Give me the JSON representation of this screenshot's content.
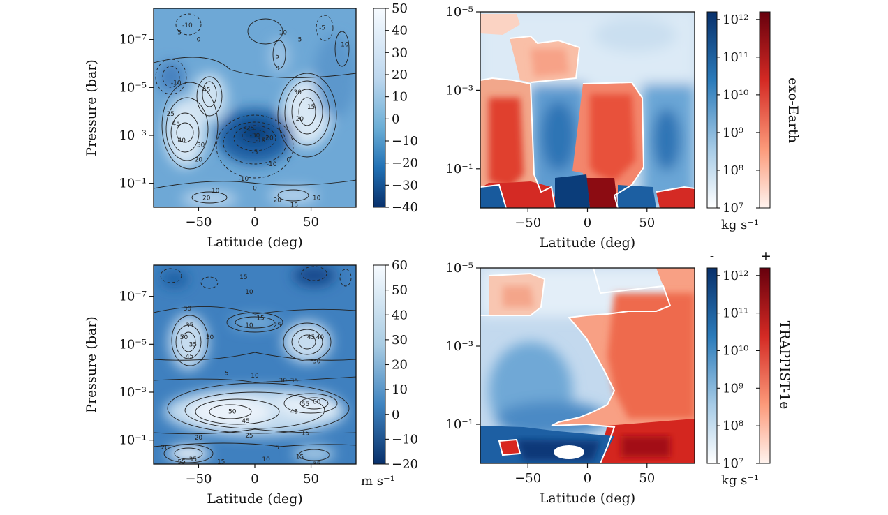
{
  "colors": {
    "blue_dark": "#08306b",
    "blue_mid": "#4a8ec6",
    "blue_light": "#deebf7",
    "red_dark": "#67000d",
    "red_mid": "#ef3b2c",
    "red_light": "#fee0d2"
  },
  "rows": [
    {
      "label": "exo-Earth",
      "sign_minus": "",
      "sign_plus": ""
    },
    {
      "label": "TRAPPIST-1e",
      "sign_minus": "-",
      "sign_plus": "+"
    }
  ],
  "chart_data": [
    {
      "type": "heatmap",
      "title": "",
      "xlabel": "Latitude (deg)",
      "ylabel": "Pressure (bar)",
      "x_ticks": [
        "−50",
        "0",
        "50"
      ],
      "x_tick_values": [
        -50,
        0,
        50
      ],
      "y_ticks": [
        "10⁻⁷",
        "10⁻⁵",
        "10⁻³",
        "10⁻¹"
      ],
      "y_tick_values": [
        1e-07,
        1e-05,
        0.001,
        0.1
      ],
      "xlim": [
        -90,
        90
      ],
      "ylim_bar_log": [
        1,
        1e-08
      ],
      "colorbar_ticks": [
        "50",
        "40",
        "30",
        "20",
        "10",
        "0",
        "−10",
        "−20",
        "−30",
        "−40"
      ],
      "colorbar_range": [
        -40,
        50
      ],
      "colorbar_unit": "",
      "contour_labels": [
        {
          "text": "-10",
          "lat": -60,
          "p_log": -7.6
        },
        {
          "text": "5",
          "lat": -67,
          "p_log": -7.3
        },
        {
          "text": "10",
          "lat": 25,
          "p_log": -7.3
        },
        {
          "text": "-5",
          "lat": 60,
          "p_log": -7.5
        },
        {
          "text": "5",
          "lat": 40,
          "p_log": -7.0
        },
        {
          "text": "10",
          "lat": 80,
          "p_log": -6.8
        },
        {
          "text": "0",
          "lat": -50,
          "p_log": -7.0
        },
        {
          "text": "5",
          "lat": 20,
          "p_log": -6.3
        },
        {
          "text": "0",
          "lat": 20,
          "p_log": -5.8
        },
        {
          "text": "-10",
          "lat": -70,
          "p_log": -5.2
        },
        {
          "text": "45",
          "lat": -43,
          "p_log": -4.9
        },
        {
          "text": "30",
          "lat": 38,
          "p_log": -4.8
        },
        {
          "text": "15",
          "lat": 50,
          "p_log": -4.2
        },
        {
          "text": "25",
          "lat": -75,
          "p_log": -3.9
        },
        {
          "text": "45",
          "lat": -70,
          "p_log": -3.5
        },
        {
          "text": "20",
          "lat": 40,
          "p_log": -3.7
        },
        {
          "text": "40",
          "lat": -65,
          "p_log": -2.8
        },
        {
          "text": "30",
          "lat": -48,
          "p_log": -2.6
        },
        {
          "text": "20",
          "lat": -50,
          "p_log": -2.0
        },
        {
          "text": "-25",
          "lat": -5,
          "p_log": -3.3
        },
        {
          "text": "-30",
          "lat": 0,
          "p_log": -3.0
        },
        {
          "text": "-15",
          "lat": 5,
          "p_log": -2.8
        },
        {
          "text": "-20",
          "lat": 12,
          "p_log": -2.9
        },
        {
          "text": "-5",
          "lat": 0,
          "p_log": -2.3
        },
        {
          "text": "-10",
          "lat": 15,
          "p_log": -1.8
        },
        {
          "text": "-10",
          "lat": -10,
          "p_log": -1.2
        },
        {
          "text": "0",
          "lat": 30,
          "p_log": -2.0
        },
        {
          "text": "0",
          "lat": 0,
          "p_log": -0.8
        },
        {
          "text": "20",
          "lat": -43,
          "p_log": -0.4
        },
        {
          "text": "10",
          "lat": -35,
          "p_log": -0.7
        },
        {
          "text": "20",
          "lat": 20,
          "p_log": -0.3
        },
        {
          "text": "15",
          "lat": 35,
          "p_log": -0.1
        },
        {
          "text": "10",
          "lat": 55,
          "p_log": -0.4
        },
        {
          "text": "5",
          "lat": -80,
          "p_log": 0.3
        },
        {
          "text": "5",
          "lat": 10,
          "p_log": 0.3
        }
      ]
    },
    {
      "type": "heatmap",
      "title": "",
      "xlabel": "Latitude (deg)",
      "ylabel": "",
      "x_ticks": [
        "−50",
        "0",
        "50"
      ],
      "x_tick_values": [
        -50,
        0,
        50
      ],
      "y_ticks": [
        "10⁻⁵",
        "10⁻³",
        "10⁻¹"
      ],
      "y_tick_values": [
        1e-05,
        0.001,
        0.1
      ],
      "xlim": [
        -90,
        90
      ],
      "colorbar_ticks": [
        "10¹²",
        "10¹¹",
        "10¹⁰",
        "10⁹",
        "10⁸",
        "10⁷"
      ],
      "colorbar_range_log": [
        7,
        12.2
      ],
      "colorbar_unit": "kg s⁻¹"
    },
    {
      "type": "heatmap",
      "title": "",
      "xlabel": "Latitude (deg)",
      "ylabel": "Pressure (bar)",
      "x_ticks": [
        "−50",
        "0",
        "50"
      ],
      "x_tick_values": [
        -50,
        0,
        50
      ],
      "y_ticks": [
        "10⁻⁷",
        "10⁻⁵",
        "10⁻³",
        "10⁻¹"
      ],
      "y_tick_values": [
        1e-07,
        1e-05,
        0.001,
        0.1
      ],
      "xlim": [
        -90,
        90
      ],
      "ylim_bar_log": [
        1,
        1e-08
      ],
      "colorbar_ticks": [
        "60",
        "50",
        "40",
        "30",
        "20",
        "10",
        "0",
        "−10",
        "−20"
      ],
      "colorbar_range": [
        -20,
        60
      ],
      "colorbar_unit": "m s⁻¹",
      "contour_labels": [
        {
          "text": "15",
          "lat": -10,
          "p_log": -7.8
        },
        {
          "text": "10",
          "lat": -5,
          "p_log": -7.2
        },
        {
          "text": "30",
          "lat": -60,
          "p_log": -6.5
        },
        {
          "text": "35",
          "lat": -58,
          "p_log": -5.8
        },
        {
          "text": "15",
          "lat": 5,
          "p_log": -6.1
        },
        {
          "text": "10",
          "lat": -5,
          "p_log": -5.8
        },
        {
          "text": "25",
          "lat": 20,
          "p_log": -5.8
        },
        {
          "text": "50",
          "lat": -63,
          "p_log": -5.3
        },
        {
          "text": "35",
          "lat": -55,
          "p_log": -5.0
        },
        {
          "text": "30",
          "lat": -40,
          "p_log": -5.3
        },
        {
          "text": "45",
          "lat": 50,
          "p_log": -5.3
        },
        {
          "text": "40",
          "lat": 58,
          "p_log": -5.3
        },
        {
          "text": "45",
          "lat": -58,
          "p_log": -4.5
        },
        {
          "text": "30",
          "lat": 55,
          "p_log": -4.3
        },
        {
          "text": "5",
          "lat": -25,
          "p_log": -3.8
        },
        {
          "text": "10",
          "lat": 0,
          "p_log": -3.7
        },
        {
          "text": "30",
          "lat": 25,
          "p_log": -3.5
        },
        {
          "text": "35",
          "lat": 35,
          "p_log": -3.5
        },
        {
          "text": "60",
          "lat": 55,
          "p_log": -2.6
        },
        {
          "text": "55",
          "lat": 45,
          "p_log": -2.5
        },
        {
          "text": "50",
          "lat": -20,
          "p_log": -2.2
        },
        {
          "text": "45",
          "lat": -8,
          "p_log": -1.8
        },
        {
          "text": "45",
          "lat": 35,
          "p_log": -2.2
        },
        {
          "text": "25",
          "lat": -5,
          "p_log": -1.2
        },
        {
          "text": "15",
          "lat": 45,
          "p_log": -1.3
        },
        {
          "text": "20",
          "lat": -50,
          "p_log": -1.1
        },
        {
          "text": "20",
          "lat": -80,
          "p_log": -0.7
        },
        {
          "text": "5",
          "lat": 20,
          "p_log": -0.7
        },
        {
          "text": "35",
          "lat": -55,
          "p_log": -0.2
        },
        {
          "text": "55",
          "lat": -65,
          "p_log": -0.1
        },
        {
          "text": "15",
          "lat": -30,
          "p_log": -0.1
        },
        {
          "text": "10",
          "lat": 10,
          "p_log": -0.2
        },
        {
          "text": "35",
          "lat": 55,
          "p_log": 0.0
        },
        {
          "text": "30",
          "lat": 58,
          "p_log": 0.3
        },
        {
          "text": "15",
          "lat": 40,
          "p_log": -0.3
        }
      ]
    },
    {
      "type": "heatmap",
      "title": "",
      "xlabel": "Latitude (deg)",
      "ylabel": "",
      "x_ticks": [
        "−50",
        "0",
        "50"
      ],
      "x_tick_values": [
        -50,
        0,
        50
      ],
      "y_ticks": [
        "10⁻⁵",
        "10⁻³",
        "10⁻¹"
      ],
      "y_tick_values": [
        1e-05,
        0.001,
        0.1
      ],
      "xlim": [
        -90,
        90
      ],
      "colorbar_ticks": [
        "10¹²",
        "10¹¹",
        "10¹⁰",
        "10⁹",
        "10⁸",
        "10⁷"
      ],
      "colorbar_range_log": [
        7,
        12.2
      ],
      "colorbar_unit": "kg s⁻¹"
    }
  ]
}
